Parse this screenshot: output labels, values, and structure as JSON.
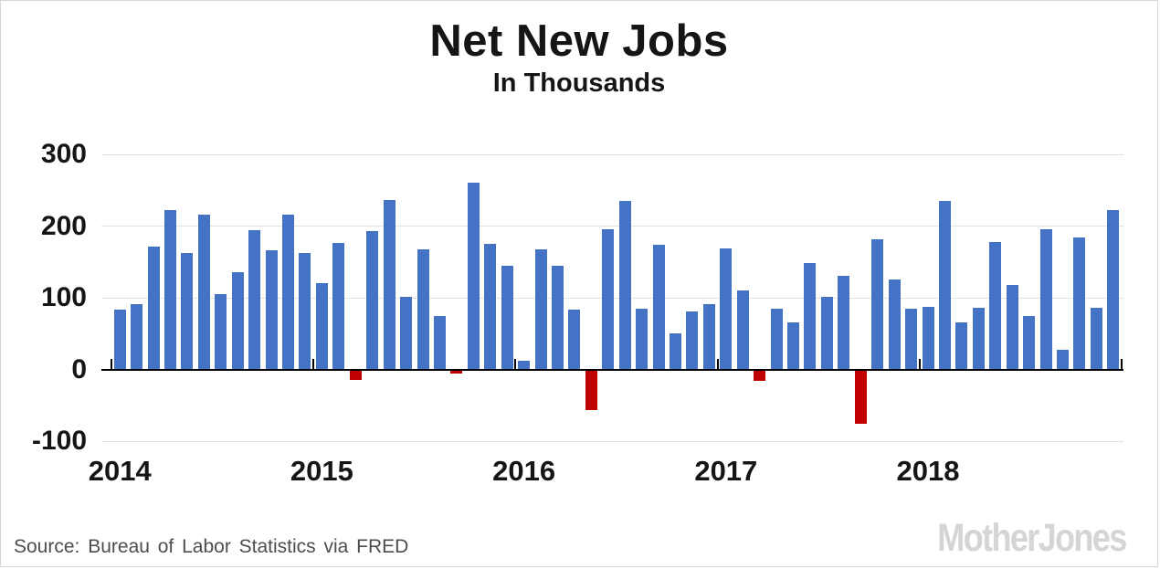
{
  "header": {
    "title": "Net New Jobs",
    "subtitle": "In Thousands"
  },
  "footer": {
    "source": "Source: Bureau of Labor Statistics via FRED",
    "logo": "MotherJones"
  },
  "chart_data": {
    "type": "bar",
    "title": "Net New Jobs",
    "subtitle": "In Thousands",
    "unit": "thousands of jobs",
    "x_tick_labels": [
      "2014",
      "2015",
      "2016",
      "2017",
      "2018"
    ],
    "y_tick_labels": [
      "300",
      "200",
      "100",
      "0",
      "-100"
    ],
    "yticks": [
      300,
      200,
      100,
      0,
      -100
    ],
    "ylim": [
      -100,
      320
    ],
    "grid": "horizontal",
    "legend": "none",
    "series": [
      {
        "name": "2014",
        "values": [
          84,
          91,
          171,
          222,
          163,
          216,
          105,
          136,
          194,
          166,
          216,
          162
        ]
      },
      {
        "name": "2015",
        "values": [
          121,
          177,
          -14,
          193,
          236,
          101,
          167,
          74,
          -4,
          260,
          175,
          145
        ]
      },
      {
        "name": "2016",
        "values": [
          12,
          168,
          145,
          84,
          -56,
          195,
          235,
          85,
          174,
          50,
          81,
          91
        ]
      },
      {
        "name": "2017",
        "values": [
          169,
          110,
          -15,
          85,
          65,
          149,
          101,
          131,
          -75,
          182,
          126,
          85
        ]
      },
      {
        "name": "2018",
        "values": [
          87,
          235,
          65,
          86,
          178,
          118,
          75,
          196,
          27,
          184,
          86,
          222
        ]
      }
    ],
    "positive_color": "#4472c4",
    "negative_color": "#c00000",
    "gridline_color": "#e2e2e2",
    "axis_color": "#000000",
    "text_color": "#151515"
  }
}
